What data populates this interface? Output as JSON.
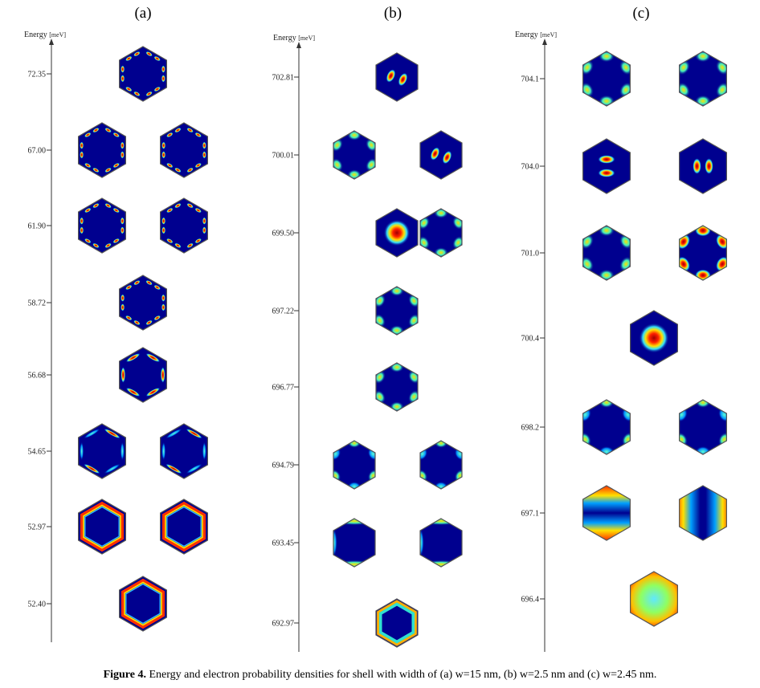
{
  "caption": {
    "label": "Figure 4.",
    "text": "Energy and electron probability densities for shell with width of (a) w=15 nm, (b) w=2.5 nm and (c) w=2.45 nm."
  },
  "colors": {
    "background_blue": "#00008f",
    "frame": "#555555",
    "axis": "#333333"
  },
  "panels": [
    {
      "id": "a",
      "label": "(a)",
      "axis_title": "Energy",
      "axis_unit": "[meV]",
      "levels": [
        {
          "energy": "72.35",
          "states": [
            {
              "pattern": "dots-edge"
            }
          ]
        },
        {
          "energy": "67.00",
          "states": [
            {
              "pattern": "dots-edge"
            },
            {
              "pattern": "dots-edge"
            }
          ]
        },
        {
          "energy": "61.90",
          "states": [
            {
              "pattern": "dots-edge"
            },
            {
              "pattern": "dots-edge"
            }
          ]
        },
        {
          "energy": "58.72",
          "states": [
            {
              "pattern": "dots-edge"
            }
          ]
        },
        {
          "energy": "56.68",
          "states": [
            {
              "pattern": "arcs-edge"
            }
          ]
        },
        {
          "energy": "54.65",
          "states": [
            {
              "pattern": "arcs-partial"
            },
            {
              "pattern": "arcs-partial"
            }
          ]
        },
        {
          "energy": "52.97",
          "states": [
            {
              "pattern": "ring-partial"
            },
            {
              "pattern": "ring-partial"
            }
          ]
        },
        {
          "energy": "52.40",
          "states": [
            {
              "pattern": "ring-full"
            }
          ]
        }
      ]
    },
    {
      "id": "b",
      "label": "(b)",
      "axis_title": "Energy",
      "axis_unit": "[meV]",
      "levels": [
        {
          "energy": "702.81",
          "states": [
            {
              "pattern": "two-lobes-diag"
            }
          ]
        },
        {
          "energy": "700.01",
          "states": [
            {
              "pattern": "corners-six"
            },
            {
              "pattern": "two-lobes-diag"
            }
          ]
        },
        {
          "energy": "699.50",
          "states": [
            {
              "pattern": "center-spot"
            }
          ]
        },
        {
          "energy": "697.22",
          "states": [
            {
              "pattern": "corners-six"
            }
          ]
        },
        {
          "energy": "696.77",
          "states": [
            {
              "pattern": "corners-six"
            }
          ]
        },
        {
          "energy": "694.79",
          "states": [
            {
              "pattern": "corners-soft"
            },
            {
              "pattern": "corners-soft"
            }
          ]
        },
        {
          "energy": "693.45",
          "states": [
            {
              "pattern": "edges-two"
            },
            {
              "pattern": "edges-two"
            }
          ]
        },
        {
          "energy": "692.97",
          "states": [
            {
              "pattern": "edge-glow"
            }
          ]
        }
      ],
      "extra_states": [
        {
          "level_index": 2,
          "pattern": "corners-six"
        }
      ]
    },
    {
      "id": "c",
      "label": "(c)",
      "axis_title": "Energy",
      "axis_unit": "[meV]",
      "levels": [
        {
          "energy": "704.1",
          "states": [
            {
              "pattern": "corners-six"
            },
            {
              "pattern": "corners-six"
            }
          ]
        },
        {
          "energy": "704.0",
          "states": [
            {
              "pattern": "two-lobes-h"
            },
            {
              "pattern": "two-lobes-v"
            }
          ]
        },
        {
          "energy": "701.0",
          "states": [
            {
              "pattern": "corners-six"
            },
            {
              "pattern": "corners-hot"
            }
          ]
        },
        {
          "energy": "700.4",
          "states": [
            {
              "pattern": "center-spot"
            }
          ]
        },
        {
          "energy": "698.2",
          "states": [
            {
              "pattern": "corners-soft"
            },
            {
              "pattern": "corners-soft"
            }
          ]
        },
        {
          "energy": "697.1",
          "states": [
            {
              "pattern": "band-h"
            },
            {
              "pattern": "band-v"
            }
          ]
        },
        {
          "energy": "696.4",
          "states": [
            {
              "pattern": "full-warm"
            }
          ]
        }
      ]
    }
  ]
}
